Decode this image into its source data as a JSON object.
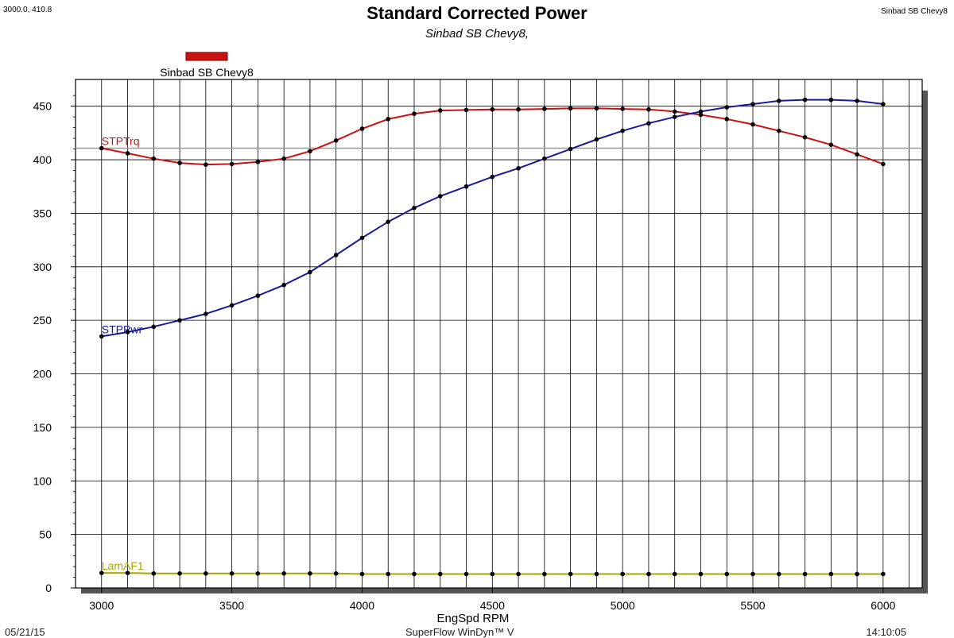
{
  "header": {
    "cursor_readout": "3000.0, 410.8",
    "run_label_right": "Sinbad SB Chevy8"
  },
  "footer": {
    "left": "05/21/15",
    "center": "SuperFlow WinDyn™ V",
    "right": "14:10:05"
  },
  "chart_data": {
    "type": "line",
    "title": "Standard Corrected Power",
    "subtitle": "Sinbad SB Chevy8,",
    "xlabel": "EngSpd RPM",
    "ylabel": "",
    "xlim": [
      2900,
      6150
    ],
    "ylim": [
      0,
      475
    ],
    "x_ticks": [
      3000,
      3500,
      4000,
      4500,
      5000,
      5500,
      6000
    ],
    "y_ticks": [
      0,
      50,
      100,
      150,
      200,
      250,
      300,
      350,
      400,
      450
    ],
    "grid": true,
    "cursor_y": 410.8,
    "legend": {
      "placement": "top-left",
      "entries": [
        {
          "name": "Sinbad SB Chevy8",
          "color": "#cc1111"
        }
      ]
    },
    "x": [
      3000,
      3100,
      3200,
      3300,
      3400,
      3500,
      3600,
      3700,
      3800,
      3900,
      4000,
      4100,
      4200,
      4300,
      4400,
      4500,
      4600,
      4700,
      4800,
      4900,
      5000,
      5100,
      5200,
      5300,
      5400,
      5500,
      5600,
      5700,
      5800,
      5900,
      6000
    ],
    "series": [
      {
        "name": "STPTrq",
        "color": "#cc1111",
        "values": [
          410.8,
          406,
          401,
          397,
          395.5,
          396,
          398,
          401,
          408,
          418,
          429,
          438,
          443,
          446,
          446.5,
          447,
          447,
          447.5,
          448,
          448,
          447.5,
          447,
          445,
          442,
          438,
          433,
          427,
          421,
          414,
          405,
          396
        ]
      },
      {
        "name": "STPPwr",
        "color": "#1a1aa0",
        "values": [
          235,
          239,
          244,
          250,
          256,
          264,
          273,
          283,
          295,
          311,
          327,
          342,
          355,
          366,
          375,
          384,
          392,
          401,
          410,
          419,
          427,
          434,
          440,
          445,
          449,
          452,
          455,
          456,
          456,
          455,
          452
        ]
      },
      {
        "name": "LamAF1",
        "color": "#a8a800",
        "values": [
          14,
          14,
          13.5,
          13.5,
          13.5,
          13.5,
          13.5,
          13.5,
          13.5,
          13.5,
          13,
          13,
          13,
          13,
          13,
          13,
          13,
          13,
          13,
          13,
          13,
          13,
          13,
          13,
          13,
          13,
          13,
          13,
          13,
          13,
          13
        ]
      }
    ]
  }
}
